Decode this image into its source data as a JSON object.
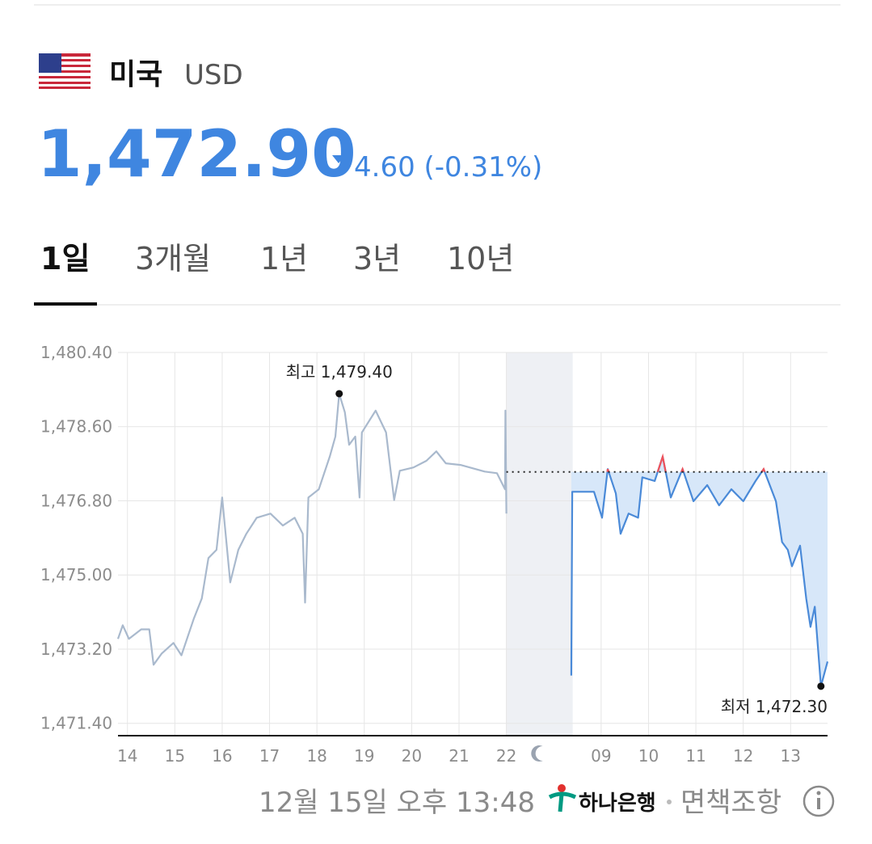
{
  "header": {
    "country": "미국",
    "currency": "USD",
    "rate": "1,472.90",
    "change": "4.60 (-0.31%)"
  },
  "tabs": [
    "1일",
    "3개월",
    "1년",
    "3년",
    "10년"
  ],
  "chart_data": {
    "type": "line",
    "ylim": [
      1471.1,
      1480.4
    ],
    "yticks": [
      {
        "value": 1480.4,
        "label": "1,480.40"
      },
      {
        "value": 1478.6,
        "label": "1,478.60"
      },
      {
        "value": 1476.8,
        "label": "1,476.80"
      },
      {
        "value": 1475.0,
        "label": "1,475.00"
      },
      {
        "value": 1473.2,
        "label": "1,473.20"
      },
      {
        "value": 1471.4,
        "label": "1,471.40"
      }
    ],
    "xlim": [
      -0.2,
      14.78
    ],
    "xticks": [
      {
        "value": 0,
        "label": "14"
      },
      {
        "value": 1,
        "label": "15"
      },
      {
        "value": 2,
        "label": "16"
      },
      {
        "value": 3,
        "label": "17"
      },
      {
        "value": 4,
        "label": "18"
      },
      {
        "value": 5,
        "label": "19"
      },
      {
        "value": 6,
        "label": "20"
      },
      {
        "value": 7,
        "label": "21"
      },
      {
        "value": 8,
        "label": "22"
      },
      {
        "value": 10,
        "label": "09"
      },
      {
        "value": 11,
        "label": "10"
      },
      {
        "value": 12,
        "label": "11"
      },
      {
        "value": 13,
        "label": "12"
      },
      {
        "value": 14,
        "label": "13"
      }
    ],
    "closed_market_xlim": [
      8.0,
      9.4
    ],
    "baseline": 1477.5,
    "grid": true,
    "series": [
      {
        "color": "#a9b9cd",
        "x": [
          -0.2,
          -0.1,
          0.03,
          0.29,
          0.46,
          0.55,
          0.72,
          0.97,
          1.14,
          1.4,
          1.57,
          1.71,
          1.88,
          2.0,
          2.17,
          2.34,
          2.51,
          2.73,
          3.02,
          3.28,
          3.53,
          3.7,
          3.75,
          3.82,
          4.04,
          4.27,
          4.39,
          4.47,
          4.59,
          4.68,
          4.81,
          4.9,
          4.95,
          5.24,
          5.46,
          5.63,
          5.75,
          6.04,
          6.31,
          6.52,
          6.72,
          7.03,
          7.54,
          7.8,
          7.97,
          7.98,
          8.0
        ],
        "values": [
          1473.45,
          1473.78,
          1473.45,
          1473.68,
          1473.68,
          1472.82,
          1473.09,
          1473.35,
          1473.05,
          1473.94,
          1474.43,
          1475.41,
          1475.61,
          1476.88,
          1474.82,
          1475.61,
          1476.0,
          1476.39,
          1476.49,
          1476.2,
          1476.39,
          1476.0,
          1474.33,
          1476.88,
          1477.08,
          1477.87,
          1478.36,
          1479.4,
          1478.95,
          1478.16,
          1478.36,
          1476.88,
          1478.46,
          1478.99,
          1478.46,
          1476.82,
          1477.53,
          1477.61,
          1477.77,
          1478.0,
          1477.71,
          1477.67,
          1477.51,
          1477.47,
          1477.08,
          1478.99,
          1476.49
        ]
      },
      {
        "color": "#4a8ad8",
        "above_color": "#f0525a",
        "area_color": "#d7e7f9",
        "x": [
          9.37,
          9.39,
          9.85,
          10.02,
          10.14,
          10.31,
          10.41,
          10.58,
          10.78,
          10.87,
          11.13,
          11.3,
          11.47,
          11.72,
          11.95,
          12.24,
          12.49,
          12.75,
          13.0,
          13.26,
          13.43,
          13.69,
          13.82,
          13.94,
          14.03,
          14.2,
          14.33,
          14.42,
          14.51,
          14.64,
          14.78
        ],
        "values": [
          1472.56,
          1477.02,
          1477.02,
          1476.39,
          1477.57,
          1476.98,
          1476.0,
          1476.49,
          1476.39,
          1477.37,
          1477.28,
          1477.87,
          1476.88,
          1477.57,
          1476.79,
          1477.18,
          1476.69,
          1477.08,
          1476.79,
          1477.28,
          1477.57,
          1476.79,
          1475.8,
          1475.61,
          1475.21,
          1475.71,
          1474.43,
          1473.74,
          1474.23,
          1472.3,
          1472.9
        ]
      }
    ],
    "annotations": [
      {
        "text": "최고 1,479.40",
        "x": 4.47,
        "y": 1479.4
      },
      {
        "text": "최저 1,472.30",
        "x": 14.64,
        "y": 1472.3
      }
    ]
  },
  "footer": {
    "timestamp": "12월 15일 오후 13:48",
    "bank": "하나은행",
    "disclaimer": "면책조항"
  }
}
